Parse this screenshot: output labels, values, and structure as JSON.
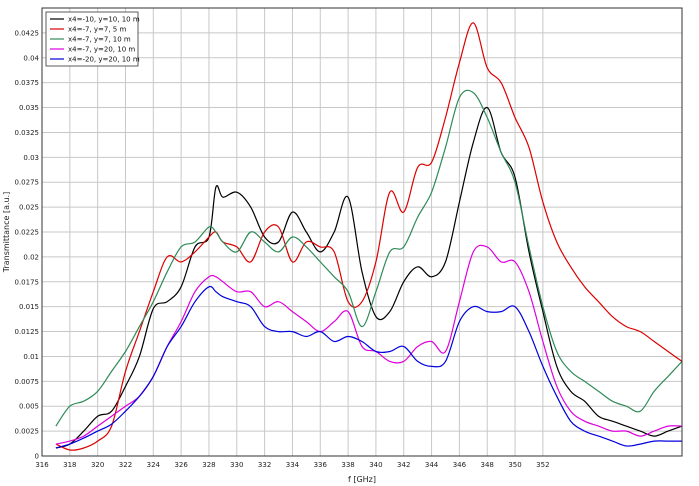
{
  "chart_data": {
    "type": "line",
    "xlabel": "f [GHz]",
    "ylabel": "Transmittance [a.u.]",
    "xlim": [
      316,
      362
    ],
    "ylim": [
      0,
      0.045
    ],
    "xticks": [
      "316",
      "318",
      "320",
      "322",
      "324",
      "326",
      "328",
      "330",
      "332",
      "334",
      "336",
      "338",
      "340",
      "342",
      "344",
      "346",
      "348",
      "350",
      "352"
    ],
    "yticks": [
      "0",
      "0.0025",
      "0.005",
      "0.0075",
      "0.01",
      "0.0125",
      "0.015",
      "0.0175",
      "0.02",
      "0.0225",
      "0.025",
      "0.0275",
      "0.03",
      "0.0325",
      "0.035",
      "0.0375",
      "0.04",
      "0.0425"
    ],
    "grid": true,
    "legend_position": "top-left",
    "series": [
      {
        "name": "x4=-10, y=10, 10 m",
        "color": "#000000",
        "x": [
          317,
          318,
          319,
          320,
          321,
          322,
          323,
          324,
          325,
          326,
          327,
          328,
          328.5,
          329,
          330,
          331,
          332,
          333,
          334,
          335,
          336,
          337,
          338,
          339,
          340,
          341,
          342,
          343,
          344,
          345,
          346,
          347,
          348,
          349,
          350,
          351,
          352,
          353,
          354,
          355,
          356,
          357,
          358,
          359,
          360,
          361,
          362
        ],
        "y": [
          0.0008,
          0.0012,
          0.0025,
          0.004,
          0.0045,
          0.007,
          0.01,
          0.0148,
          0.0155,
          0.017,
          0.021,
          0.022,
          0.027,
          0.026,
          0.0265,
          0.025,
          0.022,
          0.0215,
          0.0245,
          0.0225,
          0.0205,
          0.0225,
          0.026,
          0.0185,
          0.014,
          0.0145,
          0.0175,
          0.019,
          0.018,
          0.0195,
          0.0255,
          0.0315,
          0.035,
          0.0305,
          0.028,
          0.0205,
          0.0145,
          0.009,
          0.0065,
          0.0055,
          0.004,
          0.0035,
          0.003,
          0.0025,
          0.002,
          0.0025,
          0.003
        ]
      },
      {
        "name": "x4=-7, y=7, 5 m",
        "color": "#dd0000",
        "x": [
          317,
          318,
          319,
          320,
          321,
          322,
          323,
          324,
          325,
          326,
          327,
          328,
          328.5,
          329,
          330,
          331,
          332,
          333,
          334,
          335,
          336,
          337,
          338,
          339,
          340,
          341,
          342,
          343,
          344,
          345,
          346,
          347,
          348,
          349,
          350,
          351,
          352,
          353,
          354,
          355,
          356,
          357,
          358,
          359,
          360,
          361,
          362
        ],
        "y": [
          0.0012,
          0.0006,
          0.0008,
          0.0015,
          0.003,
          0.0085,
          0.0125,
          0.0165,
          0.02,
          0.0195,
          0.0205,
          0.022,
          0.0225,
          0.0215,
          0.021,
          0.0195,
          0.0225,
          0.023,
          0.0195,
          0.0215,
          0.021,
          0.0205,
          0.0155,
          0.0155,
          0.0195,
          0.0265,
          0.0245,
          0.029,
          0.0295,
          0.034,
          0.0395,
          0.0435,
          0.039,
          0.0375,
          0.034,
          0.031,
          0.0255,
          0.0215,
          0.019,
          0.017,
          0.0155,
          0.014,
          0.013,
          0.0125,
          0.0115,
          0.0105,
          0.0095
        ]
      },
      {
        "name": "x4=-7, y=7, 10 m",
        "color": "#2e8b57",
        "x": [
          317,
          318,
          319,
          320,
          321,
          322,
          323,
          324,
          325,
          326,
          327,
          328,
          328.5,
          329,
          330,
          331,
          332,
          333,
          334,
          335,
          336,
          337,
          338,
          339,
          340,
          341,
          342,
          343,
          344,
          345,
          346,
          347,
          348,
          349,
          350,
          351,
          352,
          353,
          354,
          355,
          356,
          357,
          358,
          359,
          360,
          361,
          362
        ],
        "y": [
          0.003,
          0.005,
          0.0055,
          0.0065,
          0.0085,
          0.0105,
          0.013,
          0.0155,
          0.0185,
          0.021,
          0.0215,
          0.023,
          0.0225,
          0.0215,
          0.0205,
          0.0225,
          0.0215,
          0.0205,
          0.022,
          0.021,
          0.0195,
          0.018,
          0.0165,
          0.013,
          0.0165,
          0.0205,
          0.021,
          0.024,
          0.0265,
          0.031,
          0.036,
          0.0365,
          0.034,
          0.0305,
          0.0275,
          0.021,
          0.015,
          0.0105,
          0.0085,
          0.0075,
          0.0065,
          0.0055,
          0.005,
          0.0045,
          0.0065,
          0.008,
          0.0095
        ]
      },
      {
        "name": "x4=-7, y=20, 10 m",
        "color": "#dd00dd",
        "x": [
          317,
          318,
          319,
          320,
          321,
          322,
          323,
          324,
          325,
          326,
          327,
          328,
          328.5,
          329,
          330,
          331,
          332,
          333,
          334,
          335,
          336,
          337,
          338,
          339,
          340,
          341,
          342,
          343,
          344,
          345,
          346,
          347,
          348,
          349,
          350,
          351,
          352,
          353,
          354,
          355,
          356,
          357,
          358,
          359,
          360,
          361,
          362
        ],
        "y": [
          0.0012,
          0.0015,
          0.002,
          0.003,
          0.004,
          0.005,
          0.006,
          0.008,
          0.011,
          0.0135,
          0.0165,
          0.018,
          0.018,
          0.0175,
          0.0165,
          0.0165,
          0.015,
          0.0155,
          0.0145,
          0.0135,
          0.0125,
          0.0135,
          0.0145,
          0.011,
          0.0105,
          0.0095,
          0.0095,
          0.011,
          0.0115,
          0.0105,
          0.0155,
          0.0205,
          0.021,
          0.0195,
          0.0195,
          0.0165,
          0.0115,
          0.007,
          0.0045,
          0.0035,
          0.003,
          0.0025,
          0.0025,
          0.002,
          0.0025,
          0.003,
          0.003
        ]
      },
      {
        "name": "x4=-20, y=20, 10 m",
        "color": "#0000dd",
        "x": [
          317,
          318,
          319,
          320,
          321,
          322,
          323,
          324,
          325,
          326,
          327,
          328,
          328.5,
          329,
          330,
          331,
          332,
          333,
          334,
          335,
          336,
          337,
          338,
          339,
          340,
          341,
          342,
          343,
          344,
          345,
          346,
          347,
          348,
          349,
          350,
          351,
          352,
          353,
          354,
          355,
          356,
          357,
          358,
          359,
          360,
          361,
          362
        ],
        "y": [
          0.0008,
          0.0012,
          0.0018,
          0.0025,
          0.0032,
          0.0045,
          0.006,
          0.008,
          0.011,
          0.013,
          0.0155,
          0.017,
          0.0165,
          0.016,
          0.0155,
          0.015,
          0.013,
          0.0125,
          0.0125,
          0.012,
          0.0125,
          0.0115,
          0.012,
          0.0115,
          0.0105,
          0.0105,
          0.011,
          0.0095,
          0.009,
          0.0095,
          0.0135,
          0.015,
          0.0145,
          0.0145,
          0.015,
          0.0125,
          0.009,
          0.006,
          0.0035,
          0.0025,
          0.002,
          0.0015,
          0.001,
          0.0012,
          0.0015,
          0.0015,
          0.0015
        ]
      }
    ]
  }
}
